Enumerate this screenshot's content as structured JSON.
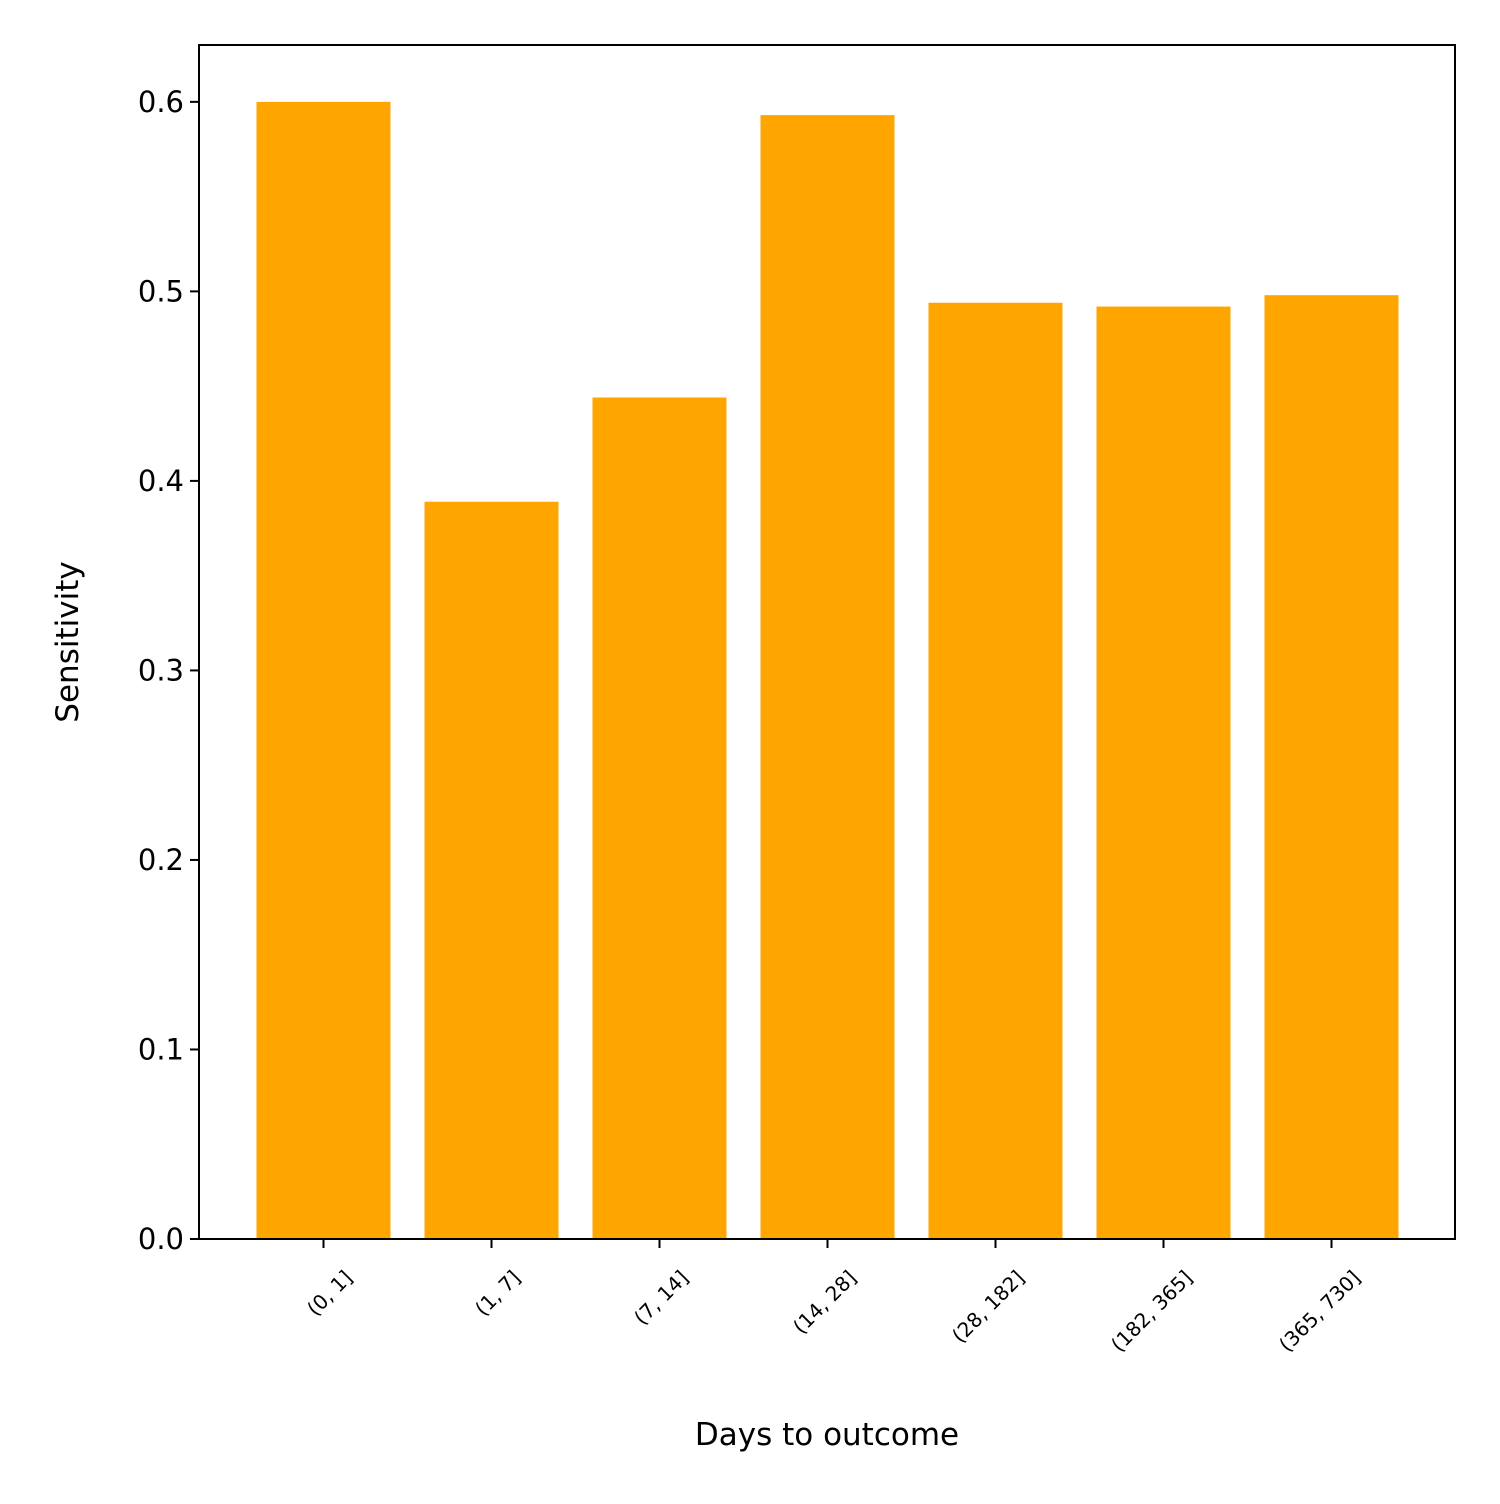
{
  "chart_data": {
    "type": "bar",
    "title": "",
    "xlabel": "Days to outcome",
    "ylabel": "Sensitivity",
    "categories": [
      "(0, 1]",
      "(1, 7]",
      "(7, 14]",
      "(14, 28]",
      "(28, 182]",
      "(182, 365]",
      "(365, 730]"
    ],
    "values": [
      0.6,
      0.389,
      0.444,
      0.593,
      0.494,
      0.492,
      0.498
    ],
    "ylim": [
      0,
      0.63
    ],
    "yticks": [
      0.0,
      0.1,
      0.2,
      0.3,
      0.4,
      0.5,
      0.6
    ],
    "ytick_labels": [
      "0.0",
      "0.1",
      "0.2",
      "0.3",
      "0.4",
      "0.5",
      "0.6"
    ],
    "grid": false,
    "legend": "none",
    "colors": {
      "bar": "#FFA500",
      "axis": "#000000",
      "background": "#FFFFFF"
    }
  }
}
